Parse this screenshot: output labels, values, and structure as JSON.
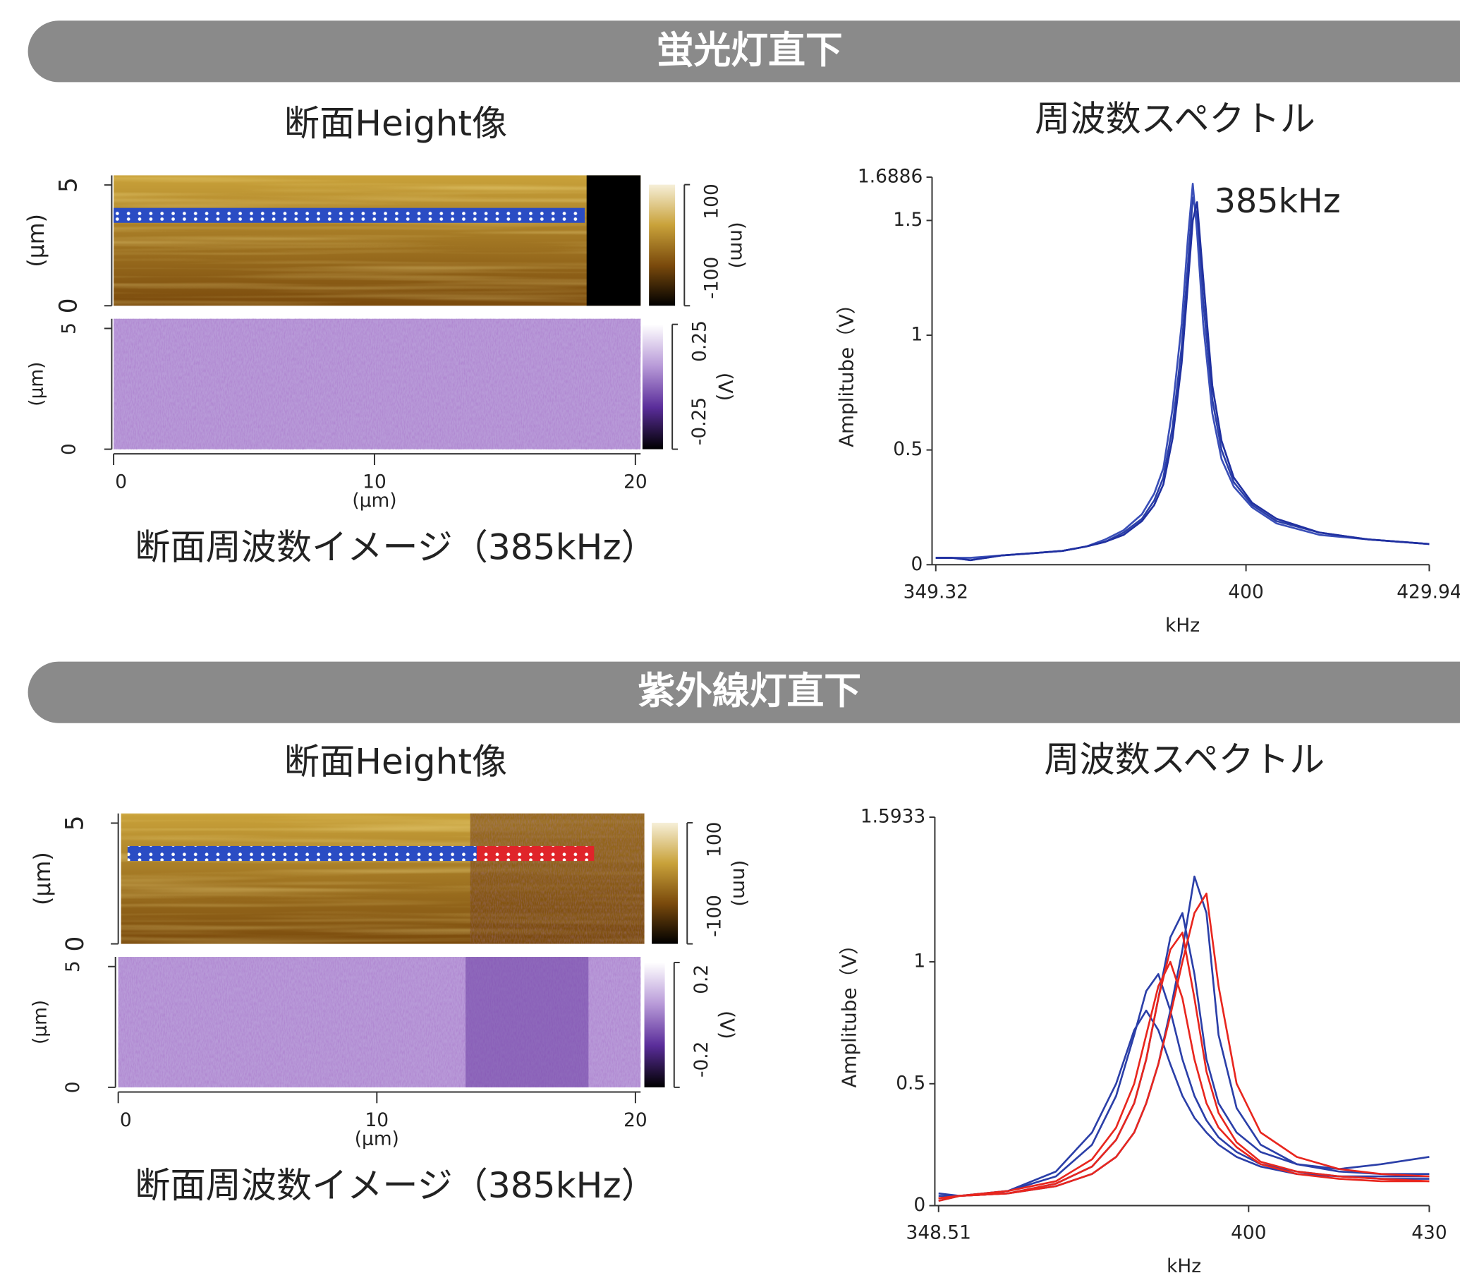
{
  "sections": [
    {
      "header": "蛍光灯直下"
    },
    {
      "header": "紫外線灯直下"
    }
  ],
  "chart_data": [
    {
      "type": "heatmap",
      "title": "断面Height像",
      "ylabel": "(µm)",
      "ylim": [
        0,
        5.4
      ],
      "yticks": [
        0,
        5
      ],
      "clim": [
        -100,
        100
      ],
      "cticks": [
        -100,
        100
      ],
      "clabel": "(nm)",
      "colormap": [
        "#f6efd8",
        "#c9a23a",
        "#7a4a0c",
        "#000000"
      ]
    },
    {
      "type": "heatmap",
      "title": "断面周波数イメージ（385kHz）",
      "xlabel": "(µm)",
      "ylabel": "(µm)",
      "xlim": [
        0,
        20.2
      ],
      "xticks": [
        0,
        10,
        20
      ],
      "ylim": [
        0,
        5.4
      ],
      "yticks": [
        0,
        5
      ],
      "clim": [
        -0.25,
        0.25
      ],
      "cticks": [
        -0.25,
        0.25
      ],
      "clabel": "(V)",
      "colormap": [
        "#ffffff",
        "#b89ad8",
        "#5a2d9a",
        "#000000"
      ]
    },
    {
      "type": "line",
      "title": "周波数スペクトル",
      "xlabel": "kHz",
      "ylabel": "Amplitube（V）",
      "annotation": "385kHz",
      "xlim": [
        349.32,
        429.94
      ],
      "xticks": [
        349.32,
        400,
        429.94
      ],
      "ylim": [
        0,
        1.6886
      ],
      "yticks": [
        0,
        0.5,
        1,
        1.5,
        1.6886
      ],
      "x": [
        349.32,
        352,
        355,
        360,
        365,
        370,
        374,
        377,
        380,
        383,
        385,
        386.5,
        388,
        389.5,
        390.5,
        391.3,
        392,
        393,
        394.5,
        396,
        398,
        401,
        405,
        412,
        420,
        429.94
      ],
      "series": [
        {
          "color": "#2b3fa8",
          "values": [
            0.03,
            0.03,
            0.02,
            0.04,
            0.05,
            0.06,
            0.08,
            0.1,
            0.14,
            0.2,
            0.28,
            0.38,
            0.6,
            0.95,
            1.3,
            1.6,
            1.52,
            1.15,
            0.72,
            0.5,
            0.36,
            0.26,
            0.19,
            0.14,
            0.11,
            0.09
          ]
        },
        {
          "color": "#3a4fb8",
          "values": [
            0.03,
            0.03,
            0.03,
            0.04,
            0.05,
            0.06,
            0.08,
            0.11,
            0.15,
            0.22,
            0.31,
            0.42,
            0.68,
            1.05,
            1.42,
            1.66,
            1.45,
            1.05,
            0.66,
            0.46,
            0.34,
            0.25,
            0.18,
            0.13,
            0.11,
            0.09
          ]
        },
        {
          "color": "#2030a0",
          "values": [
            0.03,
            0.03,
            0.02,
            0.04,
            0.05,
            0.06,
            0.08,
            0.1,
            0.13,
            0.19,
            0.26,
            0.35,
            0.55,
            0.88,
            1.22,
            1.5,
            1.58,
            1.25,
            0.78,
            0.54,
            0.38,
            0.27,
            0.2,
            0.14,
            0.11,
            0.09
          ]
        }
      ]
    },
    {
      "type": "heatmap",
      "title": "断面Height像",
      "ylabel": "(µm)",
      "ylim": [
        0,
        5.4
      ],
      "yticks": [
        0,
        5
      ],
      "clim": [
        -100,
        100
      ],
      "cticks": [
        -100,
        100
      ],
      "clabel": "(nm)",
      "colormap": [
        "#f6efd8",
        "#c9a23a",
        "#7a4a0c",
        "#000000"
      ]
    },
    {
      "type": "heatmap",
      "title": "断面周波数イメージ（385kHz）",
      "xlabel": "(µm)",
      "ylabel": "(µm)",
      "xlim": [
        0,
        20.2
      ],
      "xticks": [
        0,
        10,
        20
      ],
      "ylim": [
        0,
        5.4
      ],
      "yticks": [
        0,
        5
      ],
      "clim": [
        -0.2,
        0.2
      ],
      "cticks": [
        -0.2,
        0.2
      ],
      "clabel": "(V)",
      "colormap": [
        "#ffffff",
        "#b89ad8",
        "#5a2d9a",
        "#000000"
      ]
    },
    {
      "type": "line",
      "title": "周波数スペクトル",
      "xlabel": "kHz",
      "ylabel": "Amplitube（V）",
      "xlim": [
        348.51,
        430
      ],
      "xticks": [
        348.51,
        400,
        430
      ],
      "ylim": [
        0,
        1.5933
      ],
      "yticks": [
        0,
        0.5,
        1,
        1.5933
      ],
      "x": [
        348.51,
        352,
        360,
        368,
        374,
        378,
        381,
        383,
        385,
        387,
        389,
        391,
        393,
        395,
        398,
        402,
        408,
        415,
        422,
        430
      ],
      "series": [
        {
          "color": "#2b3fa8",
          "values": [
            0.03,
            0.04,
            0.05,
            0.08,
            0.13,
            0.2,
            0.3,
            0.42,
            0.58,
            0.8,
            1.05,
            1.35,
            1.2,
            0.7,
            0.4,
            0.25,
            0.17,
            0.14,
            0.13,
            0.13
          ]
        },
        {
          "color": "#2b3fa8",
          "values": [
            0.04,
            0.04,
            0.06,
            0.12,
            0.25,
            0.45,
            0.7,
            0.88,
            0.95,
            0.8,
            0.6,
            0.45,
            0.35,
            0.28,
            0.22,
            0.17,
            0.14,
            0.12,
            0.11,
            0.11
          ]
        },
        {
          "color": "#2b3fa8",
          "values": [
            0.02,
            0.04,
            0.05,
            0.09,
            0.16,
            0.27,
            0.42,
            0.6,
            0.85,
            1.1,
            1.2,
            0.95,
            0.6,
            0.42,
            0.3,
            0.22,
            0.17,
            0.15,
            0.17,
            0.2
          ]
        },
        {
          "color": "#2b3fa8",
          "values": [
            0.05,
            0.04,
            0.06,
            0.14,
            0.3,
            0.5,
            0.72,
            0.8,
            0.72,
            0.58,
            0.45,
            0.36,
            0.3,
            0.25,
            0.2,
            0.16,
            0.13,
            0.12,
            0.12,
            0.12
          ]
        },
        {
          "color": "#e8261e",
          "values": [
            0.02,
            0.04,
            0.05,
            0.08,
            0.13,
            0.2,
            0.3,
            0.42,
            0.58,
            0.78,
            1.0,
            1.2,
            1.28,
            0.9,
            0.5,
            0.3,
            0.2,
            0.15,
            0.13,
            0.12
          ]
        },
        {
          "color": "#e8261e",
          "values": [
            0.03,
            0.04,
            0.05,
            0.09,
            0.16,
            0.27,
            0.42,
            0.6,
            0.85,
            1.05,
            1.12,
            0.85,
            0.55,
            0.38,
            0.26,
            0.18,
            0.14,
            0.12,
            0.11,
            0.1
          ]
        },
        {
          "color": "#e8261e",
          "values": [
            0.03,
            0.04,
            0.06,
            0.1,
            0.19,
            0.32,
            0.5,
            0.7,
            0.9,
            1.0,
            0.85,
            0.6,
            0.42,
            0.32,
            0.24,
            0.17,
            0.13,
            0.11,
            0.1,
            0.1
          ]
        }
      ]
    }
  ]
}
